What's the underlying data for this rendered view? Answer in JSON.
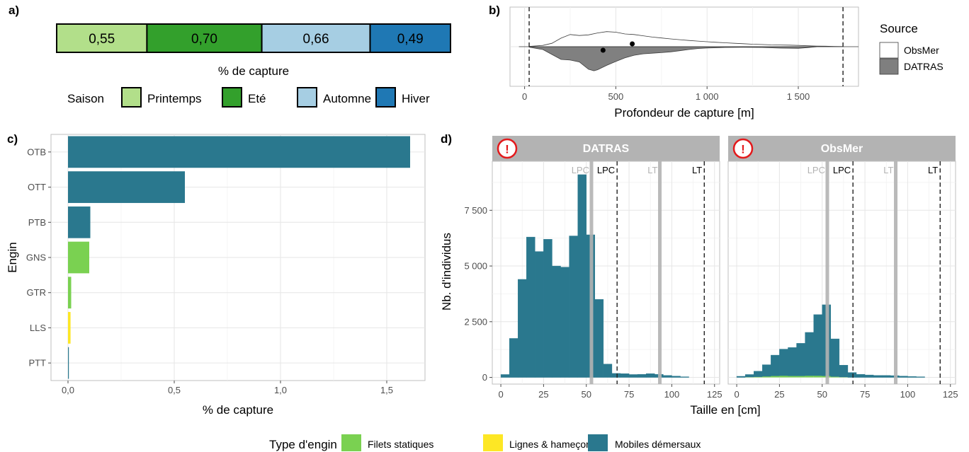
{
  "panels": {
    "a": {
      "label": "a)",
      "xlabel": "% de capture",
      "legend_title": "Saison",
      "segments": [
        {
          "season": "Printemps",
          "value": "0,55",
          "color": "#b2df8a"
        },
        {
          "season": "Eté",
          "value": "0,70",
          "color": "#33a02c"
        },
        {
          "season": "Automne",
          "value": "0,66",
          "color": "#a6cee3"
        },
        {
          "season": "Hiver",
          "value": "0,49",
          "color": "#1f78b4"
        }
      ]
    },
    "b": {
      "label": "b)",
      "xlabel": "Profondeur de capture [m]",
      "legend_title": "Source",
      "legend": [
        {
          "name": "ObsMer",
          "color": "#ffffff"
        },
        {
          "name": "DATRAS",
          "color": "#7f7f7f"
        }
      ]
    },
    "c": {
      "label": "c)",
      "xlabel": "% de capture",
      "ylabel": "Engin"
    },
    "d": {
      "label": "d)",
      "xlabel": "Taille en [cm]",
      "ylabel": "Nb. d'individus",
      "facets": [
        "DATRAS",
        "ObsMer"
      ],
      "warning_glyph": "!",
      "ref_lines": [
        {
          "label": "LPC",
          "x": 53,
          "style": "solid-grey",
          "text_color": "#b3b3b3"
        },
        {
          "label": "LPC",
          "x": 68,
          "style": "dashed-black",
          "text_color": "#000000"
        },
        {
          "label": "LT",
          "x": 93,
          "style": "solid-grey",
          "text_color": "#b3b3b3"
        },
        {
          "label": "LT",
          "x": 119,
          "style": "dashed-black",
          "text_color": "#000000"
        }
      ]
    }
  },
  "legend_bottom": {
    "title": "Type d'engin",
    "items": [
      {
        "name": "Filets statiques",
        "color": "#7ad151"
      },
      {
        "name": "Lignes & hameçons",
        "color": "#fde725"
      },
      {
        "name": "Mobiles démersaux",
        "color": "#2a788e"
      }
    ]
  },
  "chart_data": [
    {
      "type": "bar",
      "panel": "a",
      "orientation": "horizontal-stacked",
      "categories": [
        "Printemps",
        "Eté",
        "Automne",
        "Hiver"
      ],
      "values": [
        0.55,
        0.7,
        0.66,
        0.49
      ],
      "xlabel": "% de capture"
    },
    {
      "type": "area",
      "panel": "b",
      "subtype": "split-violin",
      "xlabel": "Profondeur de capture [m]",
      "xlim": [
        -80,
        1830
      ],
      "xticks": [
        0,
        500,
        1000,
        1500
      ],
      "xtick_labels": [
        "0",
        "500",
        "1 000",
        "1 500"
      ],
      "vlines": [
        25,
        1745
      ],
      "series": [
        {
          "name": "ObsMer",
          "mean": 590,
          "x": [
            25,
            100,
            150,
            200,
            250,
            300,
            350,
            400,
            450,
            500,
            550,
            600,
            650,
            700,
            750,
            800,
            850,
            900,
            950,
            1000,
            1050,
            1100,
            1150,
            1200,
            1250,
            1300,
            1350,
            1400,
            1450,
            1500,
            1550,
            1600,
            1650,
            1700,
            1745
          ],
          "density": [
            0.02,
            0.08,
            0.22,
            0.55,
            0.78,
            0.72,
            0.76,
            0.88,
            0.97,
            0.93,
            0.82,
            0.78,
            0.7,
            0.62,
            0.56,
            0.5,
            0.45,
            0.4,
            0.36,
            0.32,
            0.28,
            0.25,
            0.22,
            0.19,
            0.16,
            0.14,
            0.12,
            0.11,
            0.1,
            0.08,
            0.06,
            0.04,
            0.03,
            0.02,
            0.01
          ]
        },
        {
          "name": "DATRAS",
          "mean": 430,
          "x": [
            25,
            100,
            150,
            200,
            250,
            300,
            350,
            380,
            400,
            450,
            500,
            550,
            600,
            650,
            700,
            750,
            800,
            850,
            900,
            950,
            1000,
            1100,
            1200,
            1300,
            1400,
            1500,
            1550,
            1600
          ],
          "density": [
            0.03,
            0.18,
            0.5,
            0.82,
            0.86,
            0.98,
            1.45,
            1.55,
            1.48,
            1.2,
            0.95,
            0.72,
            0.55,
            0.46,
            0.42,
            0.38,
            0.33,
            0.26,
            0.18,
            0.12,
            0.08,
            0.05,
            0.04,
            0.05,
            0.09,
            0.11,
            0.06,
            0.01
          ]
        }
      ]
    },
    {
      "type": "bar",
      "panel": "c",
      "orientation": "horizontal",
      "categories": [
        "OTB",
        "OTT",
        "PTB",
        "GNS",
        "GTR",
        "LLS",
        "PTT"
      ],
      "values": [
        1.61,
        0.55,
        0.105,
        0.1,
        0.015,
        0.012,
        0.004
      ],
      "gear_type": [
        "Mobiles démersaux",
        "Mobiles démersaux",
        "Mobiles démersaux",
        "Filets statiques",
        "Filets statiques",
        "Lignes & hameçons",
        "Mobiles démersaux"
      ],
      "xlim": [
        -0.08,
        1.68
      ],
      "xticks": [
        0.0,
        0.5,
        1.0,
        1.5
      ],
      "xtick_labels": [
        "0,0",
        "0,5",
        "1,0",
        "1,5"
      ],
      "xlabel": "% de capture",
      "ylabel": "Engin"
    },
    {
      "type": "bar",
      "panel": "d",
      "subtype": "histogram-faceted",
      "bin_width": 5,
      "bins_left": [
        0,
        5,
        10,
        15,
        20,
        25,
        30,
        35,
        40,
        45,
        50,
        55,
        60,
        65,
        70,
        75,
        80,
        85,
        90,
        95,
        100,
        105,
        110
      ],
      "xlim": [
        -5,
        128
      ],
      "ylim": [
        -300,
        9700
      ],
      "xticks": [
        0,
        25,
        50,
        75,
        100,
        125
      ],
      "yticks": [
        0,
        2500,
        5000,
        7500
      ],
      "ytick_labels": [
        "0",
        "2 500",
        "5 000",
        "7 500"
      ],
      "xlabel": "Taille en [cm]",
      "ylabel": "Nb. d'individus",
      "facets": [
        {
          "name": "DATRAS",
          "series": [
            {
              "name": "Mobiles démersaux",
              "values": [
                130,
                1750,
                4400,
                6300,
                5650,
                6200,
                5000,
                4950,
                6350,
                9100,
                6400,
                3500,
                600,
                180,
                170,
                130,
                140,
                170,
                140,
                90,
                60,
                30,
                0
              ]
            },
            {
              "name": "Filets statiques",
              "values": [
                0,
                0,
                0,
                0,
                0,
                0,
                0,
                0,
                0,
                0,
                0,
                0,
                0,
                0,
                0,
                0,
                0,
                0,
                0,
                0,
                0,
                0,
                0
              ]
            }
          ]
        },
        {
          "name": "ObsMer",
          "series": [
            {
              "name": "Mobiles démersaux",
              "values": [
                50,
                120,
                260,
                530,
                940,
                1200,
                1280,
                1470,
                1950,
                2750,
                3200,
                1700,
                540,
                220,
                140,
                110,
                90,
                90,
                80,
                60,
                40,
                30,
                0
              ]
            },
            {
              "name": "Filets statiques",
              "values": [
                0,
                10,
                20,
                40,
                60,
                70,
                60,
                60,
                70,
                70,
                60,
                30,
                10,
                0,
                0,
                0,
                0,
                0,
                0,
                0,
                0,
                0,
                0
              ]
            }
          ]
        }
      ]
    }
  ]
}
